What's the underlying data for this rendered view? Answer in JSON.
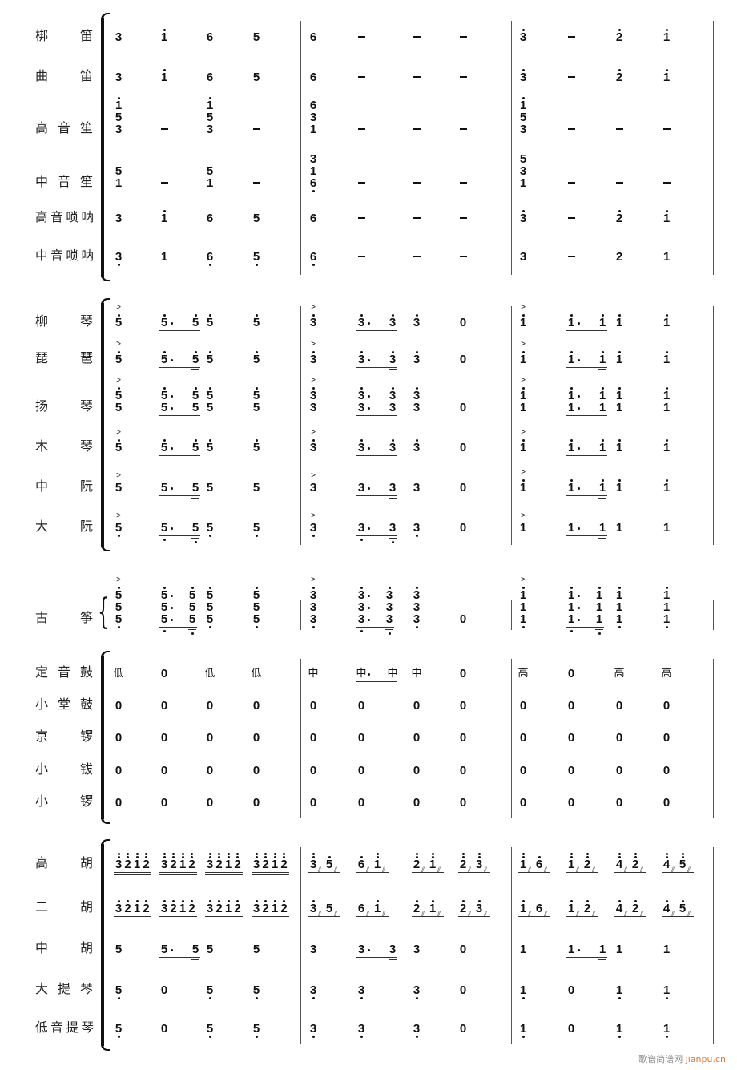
{
  "score": {
    "rows": [
      {
        "label": "梆笛",
        "measures": [
          [
            "3",
            "1'",
            "6",
            "5"
          ],
          [
            "6",
            "-",
            "-",
            "-"
          ],
          [
            "3'",
            "-",
            "2'",
            "1'"
          ]
        ]
      },
      {
        "label": "曲笛",
        "measures": [
          [
            "3",
            "1'",
            "6",
            "5"
          ],
          [
            "6",
            "-",
            "-",
            "-"
          ],
          [
            "3'",
            "-",
            "2'",
            "1'"
          ]
        ]
      },
      {
        "label": "高音笙",
        "measures": [
          [
            "1'+5+3",
            "-",
            "1'+5+3",
            "-"
          ],
          [
            "6+3+1",
            "-",
            "-",
            "-"
          ],
          [
            "1'+5+3",
            "-",
            "-",
            "-"
          ]
        ]
      },
      {
        "label": "中音笙",
        "measures": [
          [
            "5+1",
            "-",
            "5+1",
            "-"
          ],
          [
            "3+1+6,",
            "-",
            "-",
            "-"
          ],
          [
            "5+3+1",
            "-",
            "-",
            "-"
          ]
        ]
      },
      {
        "label": "高音唢呐",
        "measures": [
          [
            "3",
            "1'",
            "6",
            "5"
          ],
          [
            "6",
            "-",
            "-",
            "-"
          ],
          [
            "3'",
            "-",
            "2'",
            "1'"
          ]
        ]
      },
      {
        "label": "中音唢呐",
        "measures": [
          [
            "3,",
            "1",
            "6,",
            "5,"
          ],
          [
            "6,",
            "-",
            "-",
            "-"
          ],
          [
            "3",
            "-",
            "2",
            "1"
          ]
        ]
      },
      {
        "label": "柳琴",
        "measures": [
          [
            "^5'",
            "5'._ 5'__",
            "5'",
            "5'"
          ],
          [
            "^3'",
            "3'._ 3'__",
            "3'",
            "0"
          ],
          [
            "^1'",
            "1'._ 1'__",
            "1'",
            "1'"
          ]
        ]
      },
      {
        "label": "琵琶",
        "measures": [
          [
            "^5'",
            "5'._ 5'__",
            "5'",
            "5'"
          ],
          [
            "^3'",
            "3'._ 3'__",
            "3'",
            "0"
          ],
          [
            "^1'",
            "1'._ 1'__",
            "1'",
            "1'"
          ]
        ]
      },
      {
        "label": "扬琴",
        "measures": [
          [
            "^5'+5",
            "5'.+5._ 5'+5__",
            "5'+5",
            "5'+5"
          ],
          [
            "^3'+3",
            "3'.+3._ 3'+3__",
            "3'+3",
            "0"
          ],
          [
            "^1'+1",
            "1'.+1._ 1'+1__",
            "1'+1",
            "1'+1"
          ]
        ]
      },
      {
        "label": "木琴",
        "measures": [
          [
            "^5'",
            "5'._ 5'__",
            "5'",
            "5'"
          ],
          [
            "^3'",
            "3'._ 3'__",
            "3'",
            "0"
          ],
          [
            "^1'",
            "1'._ 1'__",
            "1'",
            "1'"
          ]
        ]
      },
      {
        "label": "中阮",
        "measures": [
          [
            "^5",
            "5._ 5__",
            "5",
            "5"
          ],
          [
            "^3",
            "3._ 3__",
            "3",
            "0"
          ],
          [
            "^1'",
            "1'._ 1'__",
            "1'",
            "1'"
          ]
        ]
      },
      {
        "label": "大阮",
        "measures": [
          [
            "^5,",
            "5,._ 5,__",
            "5,",
            "5,"
          ],
          [
            "^3,",
            "3,._ 3,__",
            "3,",
            "0"
          ],
          [
            "^1",
            "1._ 1__",
            "1",
            "1"
          ]
        ]
      },
      {
        "label": "古筝",
        "measures": [
          [
            "^5'+5+5,",
            "5'.+5.+5,._ 5'+5+5,__",
            "5'+5+5,",
            "5'+5+5,"
          ],
          [
            "^3'+3+3,",
            "3'.+3.+3,._ 3'+3+3,__",
            "3'+3+3,",
            "0"
          ],
          [
            "^1'+1+1,",
            "1'.+1.+1,._ 1'+1+1,__",
            "1'+1+1,",
            "1'+1+1,"
          ]
        ]
      },
      {
        "label": "定音鼓",
        "measures": [
          [
            "低",
            "0",
            "低",
            "低"
          ],
          [
            "中",
            "中._ 中__",
            "中",
            "0"
          ],
          [
            "高",
            "0",
            "高",
            "高"
          ]
        ]
      },
      {
        "label": "小堂鼓",
        "measures": [
          [
            "0",
            "0",
            "0",
            "0"
          ],
          [
            "0",
            "0",
            "0",
            "0"
          ],
          [
            "0",
            "0",
            "0",
            "0"
          ]
        ]
      },
      {
        "label": "京锣",
        "measures": [
          [
            "0",
            "0",
            "0",
            "0"
          ],
          [
            "0",
            "0",
            "0",
            "0"
          ],
          [
            "0",
            "0",
            "0",
            "0"
          ]
        ]
      },
      {
        "label": "小钹",
        "measures": [
          [
            "0",
            "0",
            "0",
            "0"
          ],
          [
            "0",
            "0",
            "0",
            "0"
          ],
          [
            "0",
            "0",
            "0",
            "0"
          ]
        ]
      },
      {
        "label": "小锣",
        "measures": [
          [
            "0",
            "0",
            "0",
            "0"
          ],
          [
            "0",
            "0",
            "0",
            "0"
          ],
          [
            "0",
            "0",
            "0",
            "0"
          ]
        ]
      },
      {
        "label": "高胡",
        "measures": [
          [
            "3''__ 2''__ 1''__ 2''__",
            "3''__ 2''__ 1''__ 2''__",
            "3''__ 2''__ 1''__ 2''__",
            "3''__ 2''__ 1''__ 2''__"
          ],
          [
            "3''/_ 5'/_",
            "6'/_ 1''/_",
            "2''/_ 1''/_",
            "2''/_ 3''/_"
          ],
          [
            "1''/_ 6'/_",
            "1''/_ 2''/_",
            "4''/_ 2''/_",
            "4''/_ 5''/_"
          ]
        ]
      },
      {
        "label": "二胡",
        "measures": [
          [
            "3'__ 2'__ 1'__ 2'__",
            "3'__ 2'__ 1'__ 2'__",
            "3'__ 2'__ 1'__ 2'__",
            "3'__ 2'__ 1'__ 2'__"
          ],
          [
            "3'/_ 5/_",
            "6/_ 1'/_",
            "2'/_ 1'/_",
            "2'/_ 3'/_"
          ],
          [
            "1'/_ 6/_",
            "1'/_ 2'/_",
            "4'/_ 2'/_",
            "4'/_ 5'/_"
          ]
        ]
      },
      {
        "label": "中胡",
        "measures": [
          [
            "5",
            "5._ 5__",
            "5",
            "5"
          ],
          [
            "3",
            "3._ 3__",
            "3",
            "0"
          ],
          [
            "1",
            "1._ 1__",
            "1",
            "1"
          ]
        ]
      },
      {
        "label": "大提琴",
        "measures": [
          [
            "5,",
            "0",
            "5,",
            "5,"
          ],
          [
            "3,",
            "3,",
            "3,",
            "0"
          ],
          [
            "1,",
            "0",
            "1,",
            "1,"
          ]
        ]
      },
      {
        "label": "低音提琴",
        "measures": [
          [
            "5,",
            "0",
            "5,",
            "5,"
          ],
          [
            "3,",
            "3,",
            "3,",
            "0"
          ],
          [
            "1,",
            "0",
            "1,",
            "1,"
          ]
        ]
      }
    ]
  },
  "watermark": {
    "cn": "歌谱简谱网",
    "latin": "jianpu.cn"
  }
}
